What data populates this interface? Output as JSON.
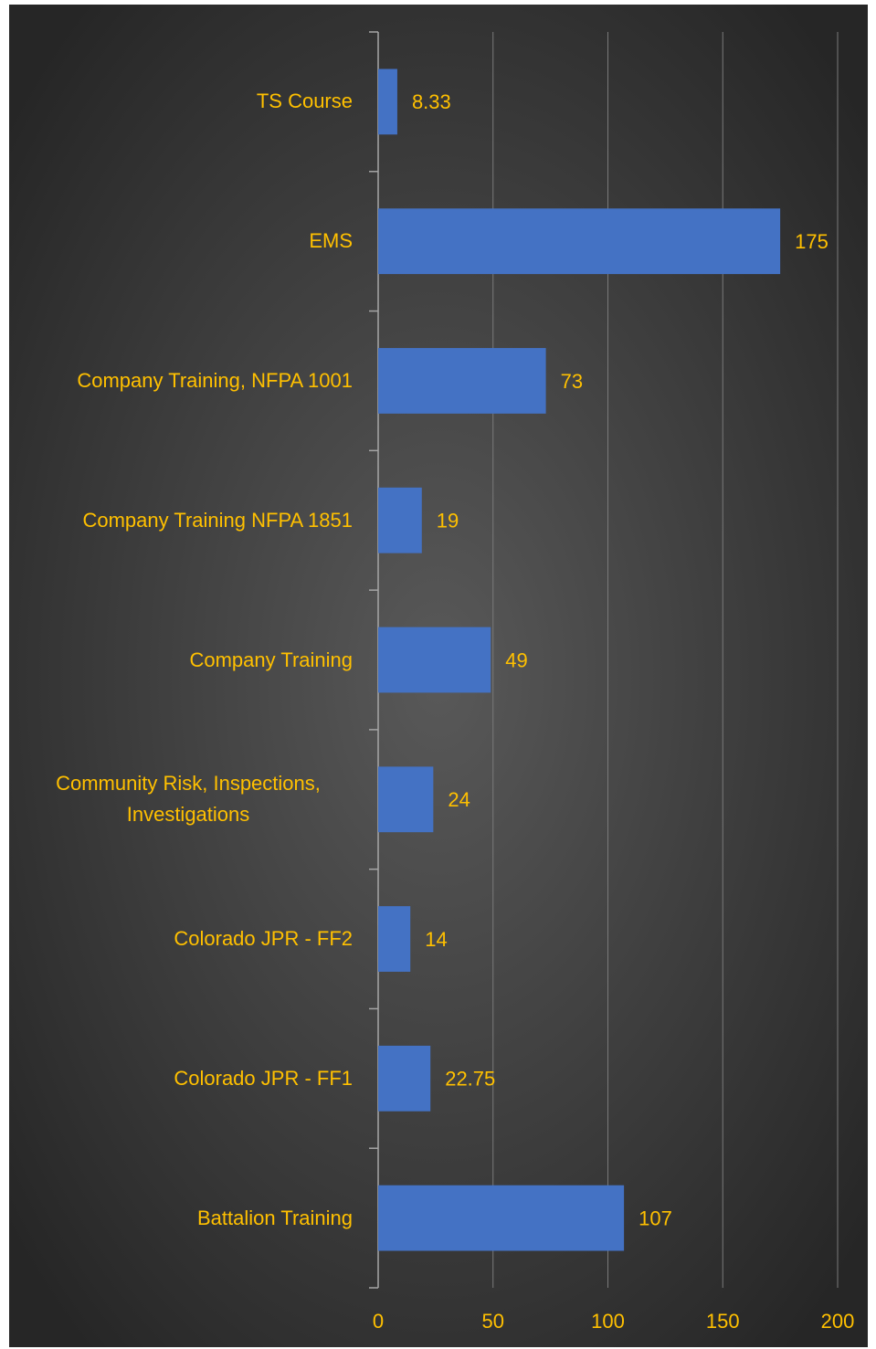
{
  "chart_data": {
    "type": "barh",
    "categories": [
      "TS Course",
      "EMS",
      "Company Training, NFPA 1001",
      "Company Training NFPA 1851",
      "Company Training",
      "Community Risk, Inspections, Investigations",
      "Colorado JPR - FF2",
      "Colorado JPR - FF1",
      "Battalion Training"
    ],
    "values": [
      8.33,
      175,
      73,
      19,
      49,
      24,
      14,
      22.75,
      107
    ],
    "color": "#4472c4",
    "xlim": [
      0,
      200
    ],
    "xticks": [
      0,
      50,
      100,
      150,
      200
    ],
    "grid": true
  }
}
